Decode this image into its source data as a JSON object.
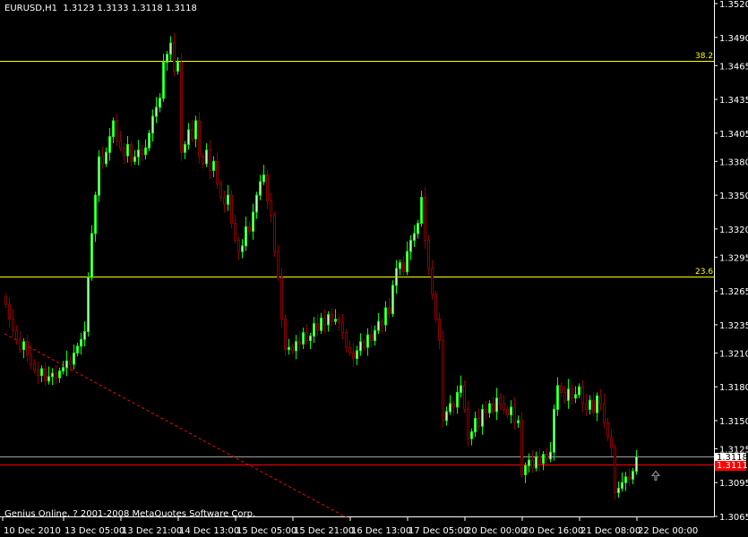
{
  "header": {
    "symbol": "EURUSD,H1",
    "ohlc_readout": "1.3123 1.3133 1.3118 1.3118"
  },
  "footer": {
    "copyright": "Genius Online, ? 2001-2008 MetaQuotes Software Corp."
  },
  "colors": {
    "background": "#000000",
    "bull": "#00ff00",
    "bull_body": "#c8ffc8",
    "bear": "#8b0000",
    "fib": "#ffff00",
    "bid_line": "#a0a0a0",
    "ask_line": "#ff0000",
    "trendline": "#ff0000",
    "axis": "#ffffff"
  },
  "price_tags": {
    "bid": "1.3118",
    "ask": "1.3111"
  },
  "fib_levels": [
    {
      "label": "38.2",
      "price": 1.3469
    },
    {
      "label": "23.6",
      "price": 1.3278
    }
  ],
  "arrow_icon": "up-arrow-icon",
  "chart_data": {
    "type": "candlestick",
    "symbol": "EURUSD",
    "timeframe": "H1",
    "ylim": [
      1.3065,
      1.352
    ],
    "y_ticks": [
      "1.3520",
      "1.3490",
      "1.3465",
      "1.3435",
      "1.3405",
      "1.3380",
      "1.3350",
      "1.3320",
      "1.3295",
      "1.3265",
      "1.3235",
      "1.3210",
      "1.3180",
      "1.3150",
      "1.3125",
      "1.3095",
      "1.3065"
    ],
    "x_ticks": [
      {
        "bar": 0,
        "label": "10 Dec 2010"
      },
      {
        "bar": 16,
        "label": "13 Dec 05:00"
      },
      {
        "bar": 32,
        "label": "13 Dec 21:00"
      },
      {
        "bar": 48,
        "label": "14 Dec 13:00"
      },
      {
        "bar": 64,
        "label": "15 Dec 05:00"
      },
      {
        "bar": 80,
        "label": "15 Dec 21:00"
      },
      {
        "bar": 96,
        "label": "16 Dec 13:00"
      },
      {
        "bar": 112,
        "label": "17 Dec 05:00"
      },
      {
        "bar": 128,
        "label": "20 Dec 00:00"
      },
      {
        "bar": 144,
        "label": "20 Dec 16:00"
      },
      {
        "bar": 160,
        "label": "21 Dec 08:00"
      },
      {
        "bar": 176,
        "label": "22 Dec 00:00"
      }
    ],
    "first_open": 1.326,
    "closes": [
      1.3253,
      1.324,
      1.323,
      1.3222,
      1.3213,
      1.322,
      1.3208,
      1.32,
      1.3195,
      1.319,
      1.3196,
      1.3185,
      1.3189,
      1.3192,
      1.3188,
      1.3194,
      1.3197,
      1.3203,
      1.32,
      1.321,
      1.3216,
      1.3222,
      1.3229,
      1.3277,
      1.3316,
      1.335,
      1.3384,
      1.3378,
      1.3388,
      1.3402,
      1.3416,
      1.3398,
      1.3392,
      1.3385,
      1.3395,
      1.338,
      1.3384,
      1.339,
      1.3386,
      1.3392,
      1.3405,
      1.342,
      1.3428,
      1.3436,
      1.3468,
      1.3475,
      1.3485,
      1.346,
      1.3468,
      1.3388,
      1.3395,
      1.3408,
      1.34,
      1.3416,
      1.3384,
      1.3378,
      1.339,
      1.3372,
      1.338,
      1.336,
      1.3348,
      1.3342,
      1.335,
      1.3325,
      1.331,
      1.33,
      1.3305,
      1.3322,
      1.3318,
      1.3335,
      1.335,
      1.3362,
      1.3368,
      1.3345,
      1.3332,
      1.33,
      1.3277,
      1.324,
      1.3213,
      1.3215,
      1.3212,
      1.322,
      1.3218,
      1.3228,
      1.3221,
      1.3225,
      1.3236,
      1.323,
      1.3241,
      1.3235,
      1.3244,
      1.3238,
      1.324,
      1.3237,
      1.3228,
      1.3215,
      1.321,
      1.3205,
      1.3212,
      1.322,
      1.3215,
      1.3226,
      1.3221,
      1.323,
      1.3238,
      1.3235,
      1.325,
      1.3245,
      1.327,
      1.3285,
      1.329,
      1.3282,
      1.33,
      1.331,
      1.3316,
      1.3325,
      1.3348,
      1.331,
      1.3285,
      1.3262,
      1.324,
      1.3221,
      1.315,
      1.3158,
      1.3165,
      1.3162,
      1.3175,
      1.3181,
      1.316,
      1.3134,
      1.314,
      1.3152,
      1.3145,
      1.316,
      1.3157,
      1.3165,
      1.3158,
      1.317,
      1.3165,
      1.316,
      1.3155,
      1.3162,
      1.3148,
      1.315,
      1.3102,
      1.311,
      1.3115,
      1.3108,
      1.3118,
      1.3112,
      1.312,
      1.3116,
      1.3122,
      1.316,
      1.3181,
      1.3175,
      1.3168,
      1.3178,
      1.317,
      1.3173,
      1.318,
      1.3165,
      1.316,
      1.3168,
      1.3157,
      1.3172,
      1.3165,
      1.3148,
      1.3135,
      1.3126,
      1.3086,
      1.309,
      1.3095,
      1.31,
      1.3098,
      1.3105,
      1.3118
    ],
    "horizontal_lines": [
      {
        "price": 1.3118,
        "kind": "bid"
      },
      {
        "price": 1.3111,
        "kind": "ask"
      }
    ],
    "trendline": {
      "from": {
        "bar": 0,
        "price": 1.3227
      },
      "to": {
        "bar": 95.5,
        "price": 1.3064
      },
      "style": "dashed"
    }
  }
}
